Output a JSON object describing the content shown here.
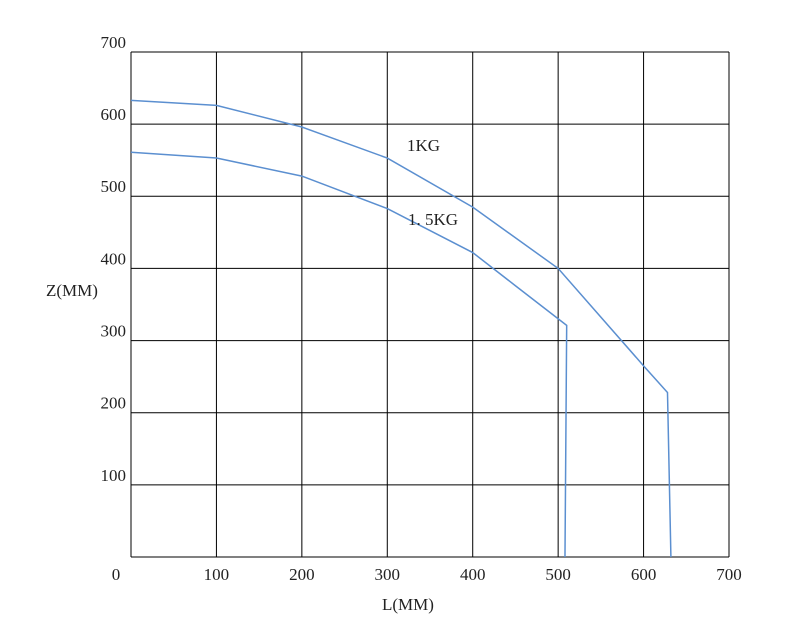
{
  "chart_data": {
    "type": "line",
    "xlabel": "L(MM)",
    "ylabel": "Z(MM)",
    "xlim": [
      0,
      700
    ],
    "ylim": [
      0,
      700
    ],
    "xticks": [
      0,
      100,
      200,
      300,
      400,
      500,
      600,
      700
    ],
    "yticks": [
      100,
      200,
      300,
      400,
      500,
      600,
      700
    ],
    "grid": true,
    "series": [
      {
        "name": "1KG",
        "color": "#5b8fd0",
        "x": [
          0,
          100,
          200,
          300,
          400,
          500,
          600,
          628,
          632
        ],
        "values": [
          633,
          626,
          596,
          553,
          485,
          400,
          265,
          228,
          0
        ]
      },
      {
        "name": "1. 5KG",
        "color": "#5b8fd0",
        "x": [
          0,
          100,
          200,
          300,
          400,
          450,
          510,
          508
        ],
        "values": [
          561,
          553,
          528,
          483,
          422,
          376,
          321,
          0
        ]
      }
    ]
  }
}
